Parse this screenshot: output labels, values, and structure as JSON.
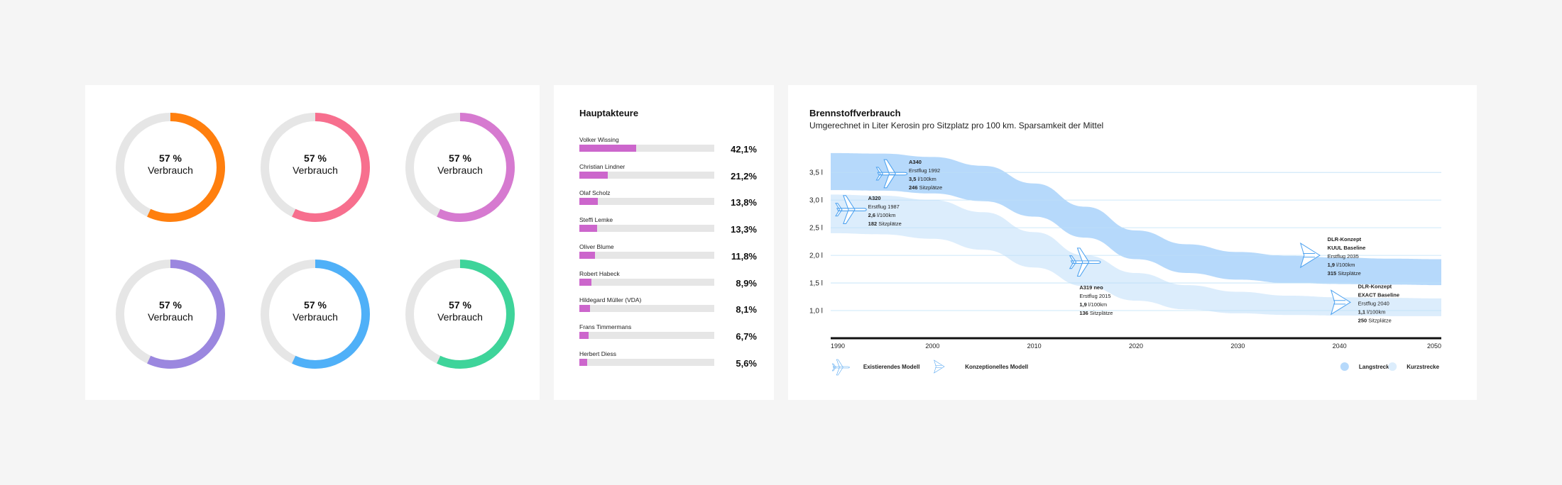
{
  "chart_data": [
    {
      "type": "pie",
      "donuts": [
        {
          "percent": 57,
          "pct_label": "57 %",
          "label": "Verbrauch",
          "color": "#ff7f0e"
        },
        {
          "percent": 57,
          "pct_label": "57 %",
          "label": "Verbrauch",
          "color": "#f76f8e"
        },
        {
          "percent": 57,
          "pct_label": "57 %",
          "label": "Verbrauch",
          "color": "#d67ad0"
        },
        {
          "percent": 57,
          "pct_label": "57 %",
          "label": "Verbrauch",
          "color": "#9b87df"
        },
        {
          "percent": 57,
          "pct_label": "57 %",
          "label": "Verbrauch",
          "color": "#4fb0f8"
        },
        {
          "percent": 57,
          "pct_label": "57 %",
          "label": "Verbrauch",
          "color": "#3ed49a"
        }
      ],
      "track_color": "#e6e6e6"
    },
    {
      "type": "bar",
      "title": "Hauptakteure",
      "categories": [
        "Volker Wissing",
        "Christian Lindner",
        "Olaf Scholz",
        "Steffi Lemke",
        "Oliver Blume",
        "Robert Habeck",
        "Hildegard Müller (VDA)",
        "Frans Timmermans",
        "Herbert Diess"
      ],
      "values": [
        42.1,
        21.2,
        13.8,
        13.3,
        11.8,
        8.9,
        8.1,
        6.7,
        5.6
      ],
      "value_labels": [
        "42,1%",
        "21,2%",
        "13,8%",
        "13,3%",
        "11,8%",
        "8,9%",
        "8,1%",
        "6,7%",
        "5,6%"
      ],
      "color": "#cc66cc",
      "track_color": "#e6e6e6"
    },
    {
      "type": "area",
      "title": "Brennstoffverbrauch",
      "subtitle": "Umgerechnet in Liter Kerosin pro Sitzplatz pro 100 km. Sparsamkeit der Mittel",
      "x_ticks": [
        "1990",
        "2000",
        "2010",
        "2020",
        "2030",
        "2040",
        "2050"
      ],
      "y_ticks": [
        "3,5 l",
        "3,0 l",
        "2,5 l",
        "2,0 l",
        "1,5 l",
        "1,0 l"
      ],
      "y_tick_values": [
        3.5,
        3.0,
        2.5,
        2.0,
        1.5,
        1.0
      ],
      "xlim": [
        1990,
        2050
      ],
      "ylim": [
        0.5,
        3.9
      ],
      "series": [
        {
          "name": "Langstrecke",
          "color": "#b6d9fb",
          "x": [
            1990,
            1995,
            2000,
            2005,
            2010,
            2015,
            2020,
            2025,
            2030,
            2035,
            2040,
            2045,
            2050
          ],
          "upper": [
            3.85,
            3.84,
            3.78,
            3.62,
            3.3,
            2.88,
            2.45,
            2.2,
            2.06,
            1.99,
            1.96,
            1.94,
            1.93
          ],
          "lower": [
            3.18,
            3.17,
            3.12,
            2.98,
            2.7,
            2.32,
            1.93,
            1.68,
            1.56,
            1.5,
            1.48,
            1.47,
            1.46
          ]
        },
        {
          "name": "Kurzstrecke",
          "color": "#dcedfc",
          "x": [
            1990,
            1995,
            2000,
            2005,
            2010,
            2015,
            2020,
            2025,
            2030,
            2035,
            2040,
            2045,
            2050
          ],
          "upper": [
            3.1,
            3.08,
            3.0,
            2.78,
            2.42,
            2.0,
            1.68,
            1.46,
            1.34,
            1.27,
            1.24,
            1.23,
            1.22
          ],
          "lower": [
            2.4,
            2.38,
            2.3,
            2.1,
            1.78,
            1.44,
            1.18,
            1.02,
            0.95,
            0.92,
            0.91,
            0.9,
            0.9
          ]
        }
      ],
      "annotations": [
        {
          "year": 1996,
          "value": 3.5,
          "kind": "existing",
          "lines": [
            [
              "",
              "A340"
            ],
            [
              "",
              "Erstflug 1992"
            ],
            [
              "3,5",
              " l/100km"
            ],
            [
              "246",
              " Sitzplätze"
            ]
          ]
        },
        {
          "year": 1992,
          "value": 2.85,
          "kind": "existing",
          "lines": [
            [
              "",
              "A320"
            ],
            [
              "",
              "Erstflug 1987"
            ],
            [
              "2,6",
              " l/100km"
            ],
            [
              "182",
              " Sitzplätze"
            ]
          ]
        },
        {
          "year": 2015,
          "value": 1.9,
          "kind": "existing",
          "lines": [
            [
              "",
              "A319 neo"
            ],
            [
              "",
              "Erstflug 2015"
            ],
            [
              "1,9",
              " l/100km"
            ],
            [
              "136",
              " Sitzplätze"
            ]
          ]
        },
        {
          "year": 2037,
          "value": 2.0,
          "kind": "concept",
          "lines": [
            [
              "",
              "DLR-Konzept"
            ],
            [
              "",
              "KUUL Baseline"
            ],
            [
              "",
              "Erstflug 2035"
            ],
            [
              "1,9",
              " l/100km"
            ],
            [
              "315",
              " Sitzplätze"
            ]
          ]
        },
        {
          "year": 2040,
          "value": 1.15,
          "kind": "concept",
          "lines": [
            [
              "",
              "DLR-Konzept"
            ],
            [
              "",
              "EXACT Baseline"
            ],
            [
              "",
              "Erstflug 2040"
            ],
            [
              "1,1",
              " l/100km"
            ],
            [
              "250",
              " Sitzplätze"
            ]
          ]
        }
      ],
      "legend": {
        "existing": "Existierendes Modell",
        "concept": "Konzeptionelles Modell",
        "long": "Langstrecke",
        "short": "Kurzstrecke"
      },
      "grid": true,
      "plane_color": "#4fa3f0"
    }
  ]
}
